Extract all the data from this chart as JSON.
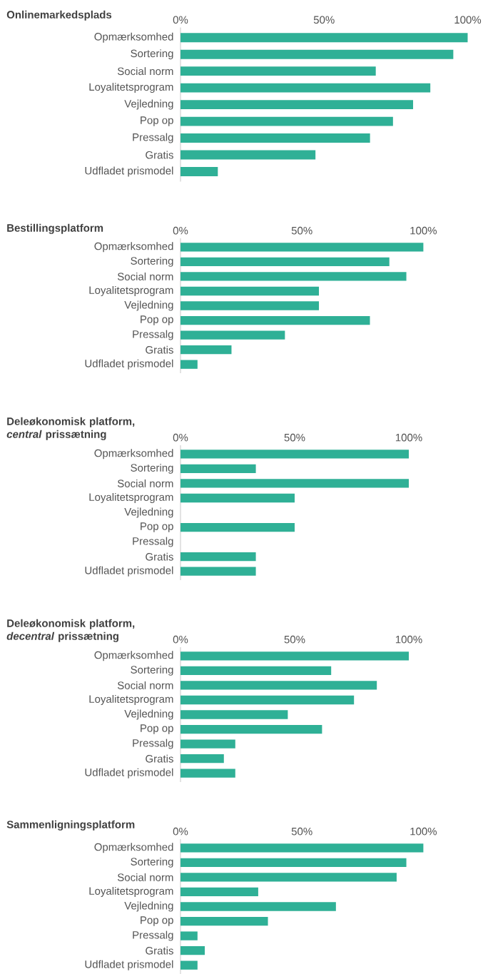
{
  "chart_data": [
    {
      "type": "bar",
      "orientation": "horizontal",
      "title": "Onlinemarkedsplads",
      "categories": [
        "Opmærksomhed",
        "Sortering",
        "Social norm",
        "Loyalitetsprogram",
        "Vejledning",
        "Pop op",
        "Pressalg",
        "Gratis",
        "Udfladet prismodel"
      ],
      "values": [
        100,
        95,
        68,
        87,
        81,
        74,
        66,
        47,
        13
      ],
      "color": "#2fb096",
      "xlim": [
        0,
        100
      ],
      "xticks": [
        {
          "value": 0,
          "label": "0%"
        },
        {
          "value": 50,
          "label": "50%"
        },
        {
          "value": 100,
          "label": "100%"
        }
      ]
    },
    {
      "type": "bar",
      "orientation": "horizontal",
      "title": "Bestillingsplatform",
      "categories": [
        "Opmærksomhed",
        "Sortering",
        "Social norm",
        "Loyalitetsprogram",
        "Vejledning",
        "Pop op",
        "Pressalg",
        "Gratis",
        "Udfladet prismodel"
      ],
      "values": [
        100,
        86,
        93,
        57,
        57,
        78,
        43,
        21,
        7
      ],
      "color": "#2fb096",
      "xlim": [
        0,
        100
      ],
      "xticks": [
        {
          "value": 0,
          "label": "0%"
        },
        {
          "value": 50,
          "label": "50%"
        },
        {
          "value": 100,
          "label": "100%"
        }
      ]
    },
    {
      "type": "bar",
      "orientation": "horizontal",
      "title": "Deleøkonomisk platform, *central* prissætning",
      "categories": [
        "Opmærksomhed",
        "Sortering",
        "Social norm",
        "Loyalitetsprogram",
        "Vejledning",
        "Pop op",
        "Pressalg",
        "Gratis",
        "Udfladet prismodel"
      ],
      "values": [
        100,
        33,
        100,
        50,
        0,
        50,
        0,
        33,
        33
      ],
      "color": "#2fb096",
      "xlim": [
        0,
        100
      ],
      "xticks": [
        {
          "value": 0,
          "label": "0%"
        },
        {
          "value": 50,
          "label": "50%"
        },
        {
          "value": 100,
          "label": "100%"
        }
      ]
    },
    {
      "type": "bar",
      "orientation": "horizontal",
      "title": "Deleøkonomisk platform, *decentral* prissætning",
      "categories": [
        "Opmærksomhed",
        "Sortering",
        "Social norm",
        "Loyalitetsprogram",
        "Vejledning",
        "Pop op",
        "Pressalg",
        "Gratis",
        "Udfladet prismodel"
      ],
      "values": [
        100,
        66,
        86,
        76,
        47,
        62,
        24,
        19,
        24
      ],
      "color": "#2fb096",
      "xlim": [
        0,
        100
      ],
      "xticks": [
        {
          "value": 0,
          "label": "0%"
        },
        {
          "value": 50,
          "label": "50%"
        },
        {
          "value": 100,
          "label": "100%"
        }
      ]
    },
    {
      "type": "bar",
      "orientation": "horizontal",
      "title": "Sammenligningsplatform",
      "categories": [
        "Opmærksomhed",
        "Sortering",
        "Social norm",
        "Loyalitetsprogram",
        "Vejledning",
        "Pop op",
        "Pressalg",
        "Gratis",
        "Udfladet prismodel"
      ],
      "values": [
        100,
        93,
        89,
        32,
        64,
        36,
        7,
        10,
        7
      ],
      "color": "#2fb096",
      "xlim": [
        0,
        100
      ],
      "xticks": [
        {
          "value": 0,
          "label": "0%"
        },
        {
          "value": 50,
          "label": "50%"
        },
        {
          "value": 100,
          "label": "100%"
        }
      ]
    }
  ]
}
